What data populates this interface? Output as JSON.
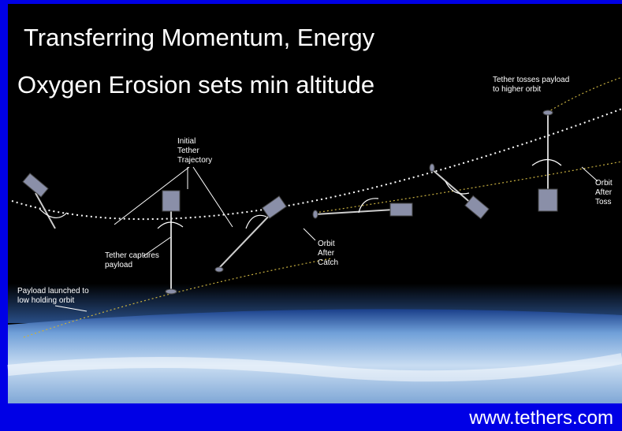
{
  "slide": {
    "title": [
      "Transferring Momentum, Energy",
      "Oxygen Erosion sets min altitude"
    ],
    "labels": [
      [
        "Tether tosses payload",
        "to higher orbit"
      ],
      [
        "Initial",
        "Tether",
        "Trajectory"
      ],
      [
        "Orbit",
        "After",
        "Toss"
      ],
      [
        "Tether captures",
        "payload"
      ],
      [
        "Orbit",
        "After",
        "Catch"
      ],
      [
        "Payload launched to",
        "low holding orbit"
      ]
    ],
    "footer": "www.tethers.com"
  }
}
